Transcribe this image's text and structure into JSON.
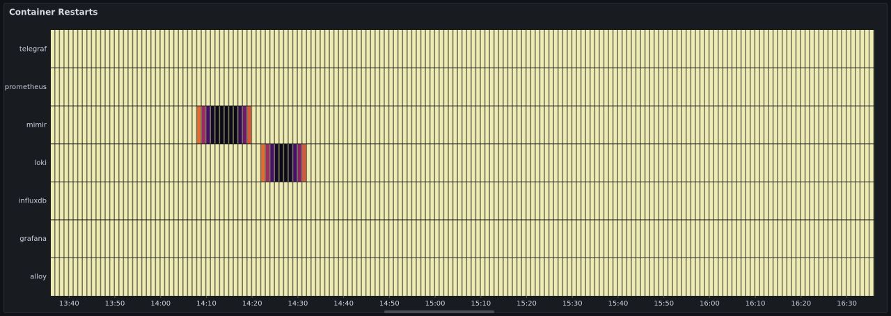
{
  "chart_data": {
    "type": "heatmap",
    "title": "Container Restarts",
    "rows": [
      "telegraf",
      "prometheus",
      "mimir",
      "loki",
      "influxdb",
      "grafana",
      "alloy"
    ],
    "x": [
      816,
      817,
      818,
      819,
      820,
      821,
      822,
      823,
      824,
      825,
      826,
      827,
      828,
      829,
      830,
      831,
      832,
      833,
      834,
      835,
      836,
      837,
      838,
      839,
      840,
      841,
      842,
      843,
      844,
      845,
      846,
      847,
      848,
      849,
      850,
      851,
      852,
      853,
      854,
      855,
      856,
      857,
      858,
      859,
      860,
      861,
      862,
      863,
      864,
      865,
      866,
      867,
      868,
      869,
      870,
      871,
      872,
      873,
      874,
      875,
      876,
      877,
      878,
      879,
      880,
      881,
      882,
      883,
      884,
      885,
      886,
      887,
      888,
      889,
      890,
      891,
      892,
      893,
      894,
      895,
      896,
      897,
      898,
      899,
      900,
      901,
      902,
      903,
      904,
      905,
      906,
      907,
      908,
      909,
      910,
      911,
      912,
      913,
      914,
      915,
      916,
      917,
      918,
      919,
      920,
      921,
      922,
      923,
      924,
      925,
      926,
      927,
      928,
      929,
      930,
      931,
      932,
      933,
      934,
      935,
      936,
      937,
      938,
      939,
      940,
      941,
      942,
      943,
      944,
      945,
      946,
      947,
      948,
      949,
      950,
      951,
      952,
      953,
      954,
      955,
      956,
      957,
      958,
      959,
      960,
      961,
      962,
      963,
      964,
      965,
      966,
      967,
      968,
      969,
      970,
      971,
      972,
      973,
      974,
      975,
      976,
      977,
      978,
      979,
      980,
      981,
      982,
      983,
      984,
      985,
      986,
      987,
      988,
      989,
      990,
      991,
      992,
      993,
      994,
      995
    ],
    "xlim": [
      816,
      996
    ],
    "xticks": [
      {
        "value": 820,
        "label": "13:40"
      },
      {
        "value": 830,
        "label": "13:50"
      },
      {
        "value": 840,
        "label": "14:00"
      },
      {
        "value": 850,
        "label": "14:10"
      },
      {
        "value": 860,
        "label": "14:20"
      },
      {
        "value": 870,
        "label": "14:30"
      },
      {
        "value": 880,
        "label": "14:40"
      },
      {
        "value": 890,
        "label": "14:50"
      },
      {
        "value": 900,
        "label": "15:00"
      },
      {
        "value": 910,
        "label": "15:10"
      },
      {
        "value": 920,
        "label": "15:20"
      },
      {
        "value": 930,
        "label": "15:30"
      },
      {
        "value": 940,
        "label": "15:40"
      },
      {
        "value": 950,
        "label": "15:50"
      },
      {
        "value": 960,
        "label": "16:00"
      },
      {
        "value": 970,
        "label": "16:10"
      },
      {
        "value": 980,
        "label": "16:20"
      },
      {
        "value": 990,
        "label": "16:30"
      }
    ],
    "colorscale": "inferno",
    "values": [
      [
        1,
        1,
        1,
        1,
        1,
        1,
        1,
        1,
        1,
        1,
        1,
        1,
        1,
        1,
        1,
        1,
        1,
        1,
        1,
        1,
        1,
        1,
        1,
        1,
        1,
        1,
        1,
        1,
        1,
        1,
        1,
        1,
        1,
        1,
        1,
        1,
        1,
        1,
        1,
        1,
        1,
        1,
        1,
        1,
        1,
        1,
        1,
        1,
        1,
        1,
        1,
        1,
        1,
        1,
        1,
        1,
        1,
        1,
        1,
        1,
        1,
        1,
        1,
        1,
        1,
        1,
        1,
        1,
        1,
        1,
        1,
        1,
        1,
        1,
        1,
        1,
        1,
        1,
        1,
        1,
        1,
        1,
        1,
        1,
        1,
        1,
        1,
        1,
        1,
        1,
        1,
        1,
        1,
        1,
        1,
        1,
        1,
        1,
        1,
        1,
        1,
        1,
        1,
        1,
        1,
        1,
        1,
        1,
        1,
        1,
        1,
        1,
        1,
        1,
        1,
        1,
        1,
        1,
        1,
        1,
        1,
        1,
        1,
        1,
        1,
        1,
        1,
        1,
        1,
        1,
        1,
        1,
        1,
        1,
        1,
        1,
        1,
        1,
        1,
        1,
        1,
        1,
        1,
        1,
        1,
        1,
        1,
        1,
        1,
        1,
        1,
        1,
        1,
        1,
        1,
        1,
        1,
        1,
        1,
        1,
        1,
        1,
        1,
        1,
        1,
        1,
        1,
        1,
        1,
        1,
        1,
        1,
        1,
        1,
        1,
        1,
        1,
        1,
        1,
        1
      ],
      [
        1,
        1,
        1,
        1,
        1,
        1,
        1,
        1,
        1,
        1,
        1,
        1,
        1,
        1,
        1,
        1,
        1,
        1,
        1,
        1,
        1,
        1,
        1,
        1,
        1,
        1,
        1,
        1,
        1,
        1,
        1,
        1,
        1,
        1,
        1,
        1,
        1,
        1,
        1,
        1,
        1,
        1,
        1,
        1,
        1,
        1,
        1,
        1,
        1,
        1,
        1,
        1,
        1,
        1,
        1,
        1,
        1,
        1,
        1,
        1,
        1,
        1,
        1,
        1,
        1,
        1,
        1,
        1,
        1,
        1,
        1,
        1,
        1,
        1,
        1,
        1,
        1,
        1,
        1,
        1,
        1,
        1,
        1,
        1,
        1,
        1,
        1,
        1,
        1,
        1,
        1,
        1,
        1,
        1,
        1,
        1,
        1,
        1,
        1,
        1,
        1,
        1,
        1,
        1,
        1,
        1,
        1,
        1,
        1,
        1,
        1,
        1,
        1,
        1,
        1,
        1,
        1,
        1,
        1,
        1,
        1,
        1,
        1,
        1,
        1,
        1,
        1,
        1,
        1,
        1,
        1,
        1,
        1,
        1,
        1,
        1,
        1,
        1,
        1,
        1,
        1,
        1,
        1,
        1,
        1,
        1,
        1,
        1,
        1,
        1,
        1,
        1,
        1,
        1,
        1,
        1,
        1,
        1,
        1,
        1,
        1,
        1,
        1,
        1,
        1,
        1,
        1,
        1,
        1,
        1,
        1,
        1,
        1,
        1,
        1,
        1,
        1,
        1,
        1,
        1
      ],
      [
        1,
        1,
        1,
        1,
        1,
        1,
        1,
        1,
        1,
        1,
        1,
        1,
        1,
        1,
        1,
        1,
        1,
        1,
        1,
        1,
        1,
        1,
        1,
        1,
        1,
        1,
        1,
        1,
        1,
        1,
        1,
        1,
        0.6,
        0.4,
        0.2,
        0.05,
        0,
        0,
        0,
        0,
        0,
        0.15,
        0.3,
        0.55,
        1,
        1,
        1,
        1,
        1,
        1,
        1,
        1,
        1,
        1,
        1,
        1,
        1,
        1,
        1,
        1,
        1,
        1,
        1,
        1,
        1,
        1,
        1,
        1,
        1,
        1,
        1,
        1,
        1,
        1,
        1,
        1,
        1,
        1,
        1,
        1,
        1,
        1,
        1,
        1,
        1,
        1,
        1,
        1,
        1,
        1,
        1,
        1,
        1,
        1,
        1,
        1,
        1,
        1,
        1,
        1,
        1,
        1,
        1,
        1,
        1,
        1,
        1,
        1,
        1,
        1,
        1,
        1,
        1,
        1,
        1,
        1,
        1,
        1,
        1,
        1,
        1,
        1,
        1,
        1,
        1,
        1,
        1,
        1,
        1,
        1,
        1,
        1,
        1,
        1,
        1,
        1,
        1,
        1,
        1,
        1,
        1,
        1,
        1,
        1,
        1,
        1,
        1,
        1,
        1,
        1,
        1,
        1,
        1,
        1,
        1,
        1,
        1,
        1,
        1,
        1,
        1,
        1,
        1,
        1,
        1,
        1,
        1,
        1,
        1,
        1,
        1,
        1,
        1,
        1,
        1,
        1,
        1,
        1,
        1,
        1
      ],
      [
        1,
        1,
        1,
        1,
        1,
        1,
        1,
        1,
        1,
        1,
        1,
        1,
        1,
        1,
        1,
        1,
        1,
        1,
        1,
        1,
        1,
        1,
        1,
        1,
        1,
        1,
        1,
        1,
        1,
        1,
        1,
        1,
        1,
        1,
        1,
        1,
        1,
        1,
        1,
        1,
        1,
        1,
        1,
        1,
        1,
        1,
        0.6,
        0.4,
        0.2,
        0.05,
        0,
        0,
        0.05,
        0.2,
        0.35,
        0.55,
        1,
        1,
        1,
        1,
        1,
        1,
        1,
        1,
        1,
        1,
        1,
        1,
        1,
        1,
        1,
        1,
        1,
        1,
        1,
        1,
        1,
        1,
        1,
        1,
        1,
        1,
        1,
        1,
        1,
        1,
        1,
        1,
        1,
        1,
        1,
        1,
        1,
        1,
        1,
        1,
        1,
        1,
        1,
        1,
        1,
        1,
        1,
        1,
        1,
        1,
        1,
        1,
        1,
        1,
        1,
        1,
        1,
        1,
        1,
        1,
        1,
        1,
        1,
        1,
        1,
        1,
        1,
        1,
        1,
        1,
        1,
        1,
        1,
        1,
        1,
        1,
        1,
        1,
        1,
        1,
        1,
        1,
        1,
        1,
        1,
        1,
        1,
        1,
        1,
        1,
        1,
        1,
        1,
        1,
        1,
        1,
        1,
        1,
        1,
        1,
        1,
        1,
        1,
        1,
        1,
        1,
        1,
        1,
        1,
        1,
        1,
        1,
        1,
        1,
        1,
        1,
        1,
        1,
        1,
        1,
        1,
        1,
        1,
        1
      ],
      [
        1,
        1,
        1,
        1,
        1,
        1,
        1,
        1,
        1,
        1,
        1,
        1,
        1,
        1,
        1,
        1,
        1,
        1,
        1,
        1,
        1,
        1,
        1,
        1,
        1,
        1,
        1,
        1,
        1,
        1,
        1,
        1,
        1,
        1,
        1,
        1,
        1,
        1,
        1,
        1,
        1,
        1,
        1,
        1,
        1,
        1,
        1,
        1,
        1,
        1,
        1,
        1,
        1,
        1,
        1,
        1,
        1,
        1,
        1,
        1,
        1,
        1,
        1,
        1,
        1,
        1,
        1,
        1,
        1,
        1,
        1,
        1,
        1,
        1,
        1,
        1,
        1,
        1,
        1,
        1,
        1,
        1,
        1,
        1,
        1,
        1,
        1,
        1,
        1,
        1,
        1,
        1,
        1,
        1,
        1,
        1,
        1,
        1,
        1,
        1,
        1,
        1,
        1,
        1,
        1,
        1,
        1,
        1,
        1,
        1,
        1,
        1,
        1,
        1,
        1,
        1,
        1,
        1,
        1,
        1,
        1,
        1,
        1,
        1,
        1,
        1,
        1,
        1,
        1,
        1,
        1,
        1,
        1,
        1,
        1,
        1,
        1,
        1,
        1,
        1,
        1,
        1,
        1,
        1,
        1,
        1,
        1,
        1,
        1,
        1,
        1,
        1,
        1,
        1,
        1,
        1,
        1,
        1,
        1,
        1,
        1,
        1,
        1,
        1,
        1,
        1,
        1,
        1,
        1,
        1,
        1,
        1,
        1,
        1,
        1,
        1,
        1,
        1,
        1,
        1
      ],
      [
        1,
        1,
        1,
        1,
        1,
        1,
        1,
        1,
        1,
        1,
        1,
        1,
        1,
        1,
        1,
        1,
        1,
        1,
        1,
        1,
        1,
        1,
        1,
        1,
        1,
        1,
        1,
        1,
        1,
        1,
        1,
        1,
        1,
        1,
        1,
        1,
        1,
        1,
        1,
        1,
        1,
        1,
        1,
        1,
        1,
        1,
        1,
        1,
        1,
        1,
        1,
        1,
        1,
        1,
        1,
        1,
        1,
        1,
        1,
        1,
        1,
        1,
        1,
        1,
        1,
        1,
        1,
        1,
        1,
        1,
        1,
        1,
        1,
        1,
        1,
        1,
        1,
        1,
        1,
        1,
        1,
        1,
        1,
        1,
        1,
        1,
        1,
        1,
        1,
        1,
        1,
        1,
        1,
        1,
        1,
        1,
        1,
        1,
        1,
        1,
        1,
        1,
        1,
        1,
        1,
        1,
        1,
        1,
        1,
        1,
        1,
        1,
        1,
        1,
        1,
        1,
        1,
        1,
        1,
        1,
        1,
        1,
        1,
        1,
        1,
        1,
        1,
        1,
        1,
        1,
        1,
        1,
        1,
        1,
        1,
        1,
        1,
        1,
        1,
        1,
        1,
        1,
        1,
        1,
        1,
        1,
        1,
        1,
        1,
        1,
        1,
        1,
        1,
        1,
        1,
        1,
        1,
        1,
        1,
        1,
        1,
        1,
        1,
        1,
        1,
        1,
        1,
        1,
        1,
        1,
        1,
        1,
        1,
        1,
        1,
        1,
        1,
        1,
        1,
        1
      ],
      [
        1,
        1,
        1,
        1,
        1,
        1,
        1,
        1,
        1,
        1,
        1,
        1,
        1,
        1,
        1,
        1,
        1,
        1,
        1,
        1,
        1,
        1,
        1,
        1,
        1,
        1,
        1,
        1,
        1,
        1,
        1,
        1,
        1,
        1,
        1,
        1,
        1,
        1,
        1,
        1,
        1,
        1,
        1,
        1,
        1,
        1,
        1,
        1,
        1,
        1,
        1,
        1,
        1,
        1,
        1,
        1,
        1,
        1,
        1,
        1,
        1,
        1,
        1,
        1,
        1,
        1,
        1,
        1,
        1,
        1,
        1,
        1,
        1,
        1,
        1,
        1,
        1,
        1,
        1,
        1,
        1,
        1,
        1,
        1,
        1,
        1,
        1,
        1,
        1,
        1,
        1,
        1,
        1,
        1,
        1,
        1,
        1,
        1,
        1,
        1,
        1,
        1,
        1,
        1,
        1,
        1,
        1,
        1,
        1,
        1,
        1,
        1,
        1,
        1,
        1,
        1,
        1,
        1,
        1,
        1,
        1,
        1,
        1,
        1,
        1,
        1,
        1,
        1,
        1,
        1,
        1,
        1,
        1,
        1,
        1,
        1,
        1,
        1,
        1,
        1,
        1,
        1,
        1,
        1,
        1,
        1,
        1,
        1,
        1,
        1,
        1,
        1,
        1,
        1,
        1,
        1,
        1,
        1,
        1,
        1,
        1,
        1,
        1,
        1,
        1,
        1,
        1,
        1,
        1,
        1,
        1,
        1,
        1,
        1,
        1,
        1,
        1,
        1,
        1,
        1
      ]
    ]
  }
}
